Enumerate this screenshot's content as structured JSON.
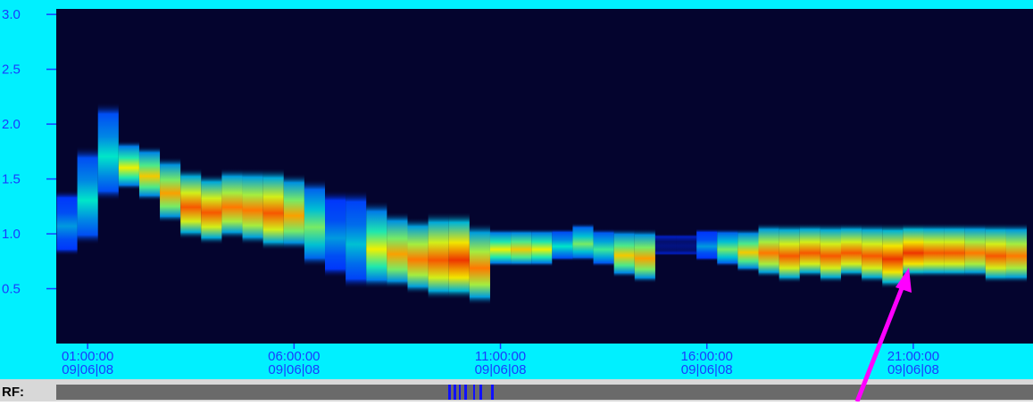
{
  "chart_data": {
    "type": "spectrogram",
    "xlim": [
      0.24,
      23.9
    ],
    "xticks": [
      {
        "value": 1,
        "label": "01:00:00"
      },
      {
        "value": 6,
        "label": "06:00:00"
      },
      {
        "value": 11,
        "label": "11:00:00"
      },
      {
        "value": 16,
        "label": "16:00:00"
      },
      {
        "value": 21,
        "label": "21:00:00"
      }
    ],
    "xtick_dates": [
      "09|06|08",
      "09|06|08",
      "09|06|08",
      "09|06|08",
      "09|06|08"
    ],
    "ylim": [
      0,
      3.05
    ],
    "yticks": [
      0.5,
      {
        "value": 1,
        "label": "1.0"
      },
      1.5,
      {
        "value": 2,
        "label": "2.0"
      },
      2.5,
      {
        "value": 3,
        "label": "3.0"
      }
    ],
    "x": [
      0.5,
      1,
      1.5,
      2,
      2.5,
      3,
      3.5,
      4,
      4.5,
      5,
      5.5,
      6,
      6.5,
      7,
      7.5,
      8,
      8.5,
      9,
      9.5,
      10,
      10.5,
      11,
      11.5,
      12,
      12.5,
      13,
      13.5,
      14,
      14.5,
      15,
      15.5,
      16,
      16.5,
      17,
      17.5,
      18,
      18.5,
      19,
      19.5,
      20,
      20.5,
      21,
      21.5,
      22,
      22.5,
      23,
      23.5
    ],
    "band_low": [
      0.8,
      0.9,
      1.3,
      1.4,
      1.3,
      1.1,
      0.95,
      0.9,
      0.95,
      0.9,
      0.85,
      0.85,
      0.7,
      0.6,
      0.5,
      0.5,
      0.5,
      0.45,
      0.4,
      0.4,
      0.35,
      0.7,
      0.7,
      0.7,
      0.75,
      0.75,
      0.7,
      0.6,
      0.55,
      0.8,
      0.8,
      0.75,
      0.7,
      0.65,
      0.6,
      0.55,
      0.6,
      0.55,
      0.6,
      0.55,
      0.5,
      0.6,
      0.6,
      0.6,
      0.6,
      0.55,
      0.55
    ],
    "band_high": [
      1.4,
      1.8,
      2.2,
      1.85,
      1.8,
      1.7,
      1.6,
      1.55,
      1.6,
      1.6,
      1.6,
      1.55,
      1.5,
      1.4,
      1.4,
      1.3,
      1.2,
      1.15,
      1.2,
      1.2,
      1.1,
      1.05,
      1.05,
      1.05,
      1.05,
      1.1,
      1.05,
      1.05,
      1.05,
      1.0,
      1.0,
      1.05,
      1.05,
      1.05,
      1.1,
      1.1,
      1.1,
      1.1,
      1.1,
      1.1,
      1.1,
      1.1,
      1.1,
      1.1,
      1.1,
      1.1,
      1.1
    ],
    "intensity": [
      0.4,
      0.5,
      0.5,
      0.7,
      0.75,
      0.8,
      0.9,
      0.9,
      0.85,
      0.85,
      0.9,
      0.8,
      0.6,
      0.4,
      0.45,
      0.7,
      0.8,
      0.85,
      0.9,
      0.95,
      0.85,
      0.7,
      0.75,
      0.7,
      0.5,
      0.6,
      0.55,
      0.75,
      0.8,
      0.1,
      0.1,
      0.4,
      0.6,
      0.75,
      0.85,
      0.9,
      0.9,
      0.9,
      0.9,
      0.9,
      0.95,
      0.95,
      0.9,
      0.9,
      0.85,
      0.9,
      0.85
    ],
    "rf_label": "RF:"
  }
}
